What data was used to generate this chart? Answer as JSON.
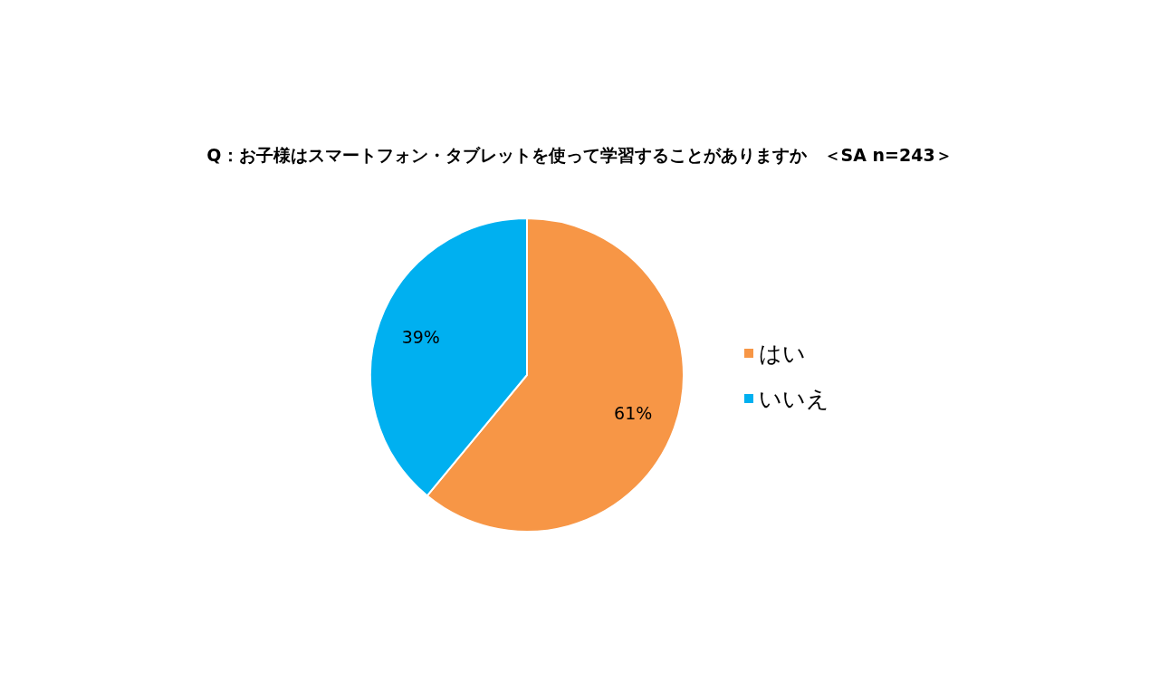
{
  "chart_data": {
    "type": "pie",
    "title": "Q：お子様はスマートフォン・タブレットを使って学習することがありますか　＜SA n=243＞",
    "categories": [
      "はい",
      "いいえ"
    ],
    "values": [
      61,
      39
    ],
    "colors": [
      "#f79646",
      "#00b0f0"
    ],
    "value_labels": [
      "61%",
      "39%"
    ],
    "legend": "right"
  }
}
